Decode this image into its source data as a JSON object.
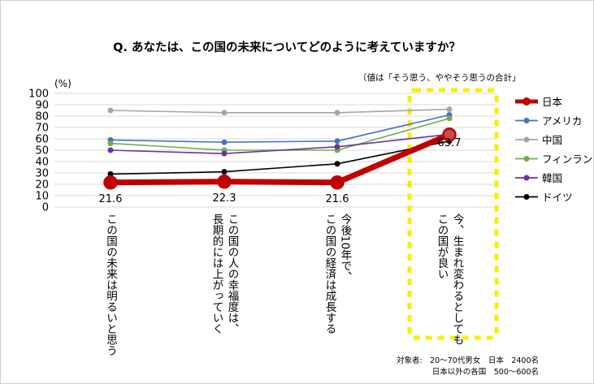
{
  "title": "Q. あなたは、この国の未来についてどのように考えていますか？",
  "unit": "(%)",
  "note": "〔値は「そう思う、ややそう思うの合計」",
  "footer": {
    "line1": "対象者:　20～70代男女　日本　2400名",
    "line2": "日本以外の各国　500～600名"
  },
  "highlight_color": "#f6f000",
  "chart_data": {
    "type": "line",
    "title": "Q. あなたは、この国の未来についてどのように考えていますか？",
    "ylabel": "(%)",
    "ylim": [
      0,
      100
    ],
    "yticks": [
      0,
      10,
      20,
      30,
      40,
      50,
      60,
      70,
      80,
      90,
      100
    ],
    "grid": true,
    "legend_position": "right",
    "categories": [
      [
        "この国の未来は明るいと思う"
      ],
      [
        "この国の人の幸福度は、",
        "長期的には上がっていく"
      ],
      [
        "今後10年で、",
        "この国の経済は成長する"
      ],
      [
        "今、生まれ変わるとしても",
        "この国が良い"
      ]
    ],
    "highlighted_category": 3,
    "series": [
      {
        "name": "日本",
        "values": [
          21.6,
          22.3,
          21.6,
          63.7
        ],
        "color": "#c00000",
        "emphasis": true
      },
      {
        "name": "アメリカ",
        "values": [
          59,
          57,
          58,
          81
        ],
        "color": "#4472c4"
      },
      {
        "name": "中国",
        "values": [
          85,
          83,
          83,
          86
        ],
        "color": "#a5a5a5"
      },
      {
        "name": "フィンランド",
        "values": [
          56,
          50,
          50,
          78
        ],
        "color": "#70ad47"
      },
      {
        "name": "韓国",
        "values": [
          50,
          47,
          53,
          64
        ],
        "color": "#7030a0"
      },
      {
        "name": "ドイツ",
        "values": [
          29,
          31,
          38,
          58
        ],
        "color": "#000000"
      }
    ],
    "data_labels": [
      {
        "series": "日本",
        "index": 0,
        "text": "21.6"
      },
      {
        "series": "日本",
        "index": 1,
        "text": "22.3"
      },
      {
        "series": "日本",
        "index": 2,
        "text": "21.6"
      },
      {
        "series": "日本",
        "index": 3,
        "text": "63.7"
      }
    ]
  }
}
